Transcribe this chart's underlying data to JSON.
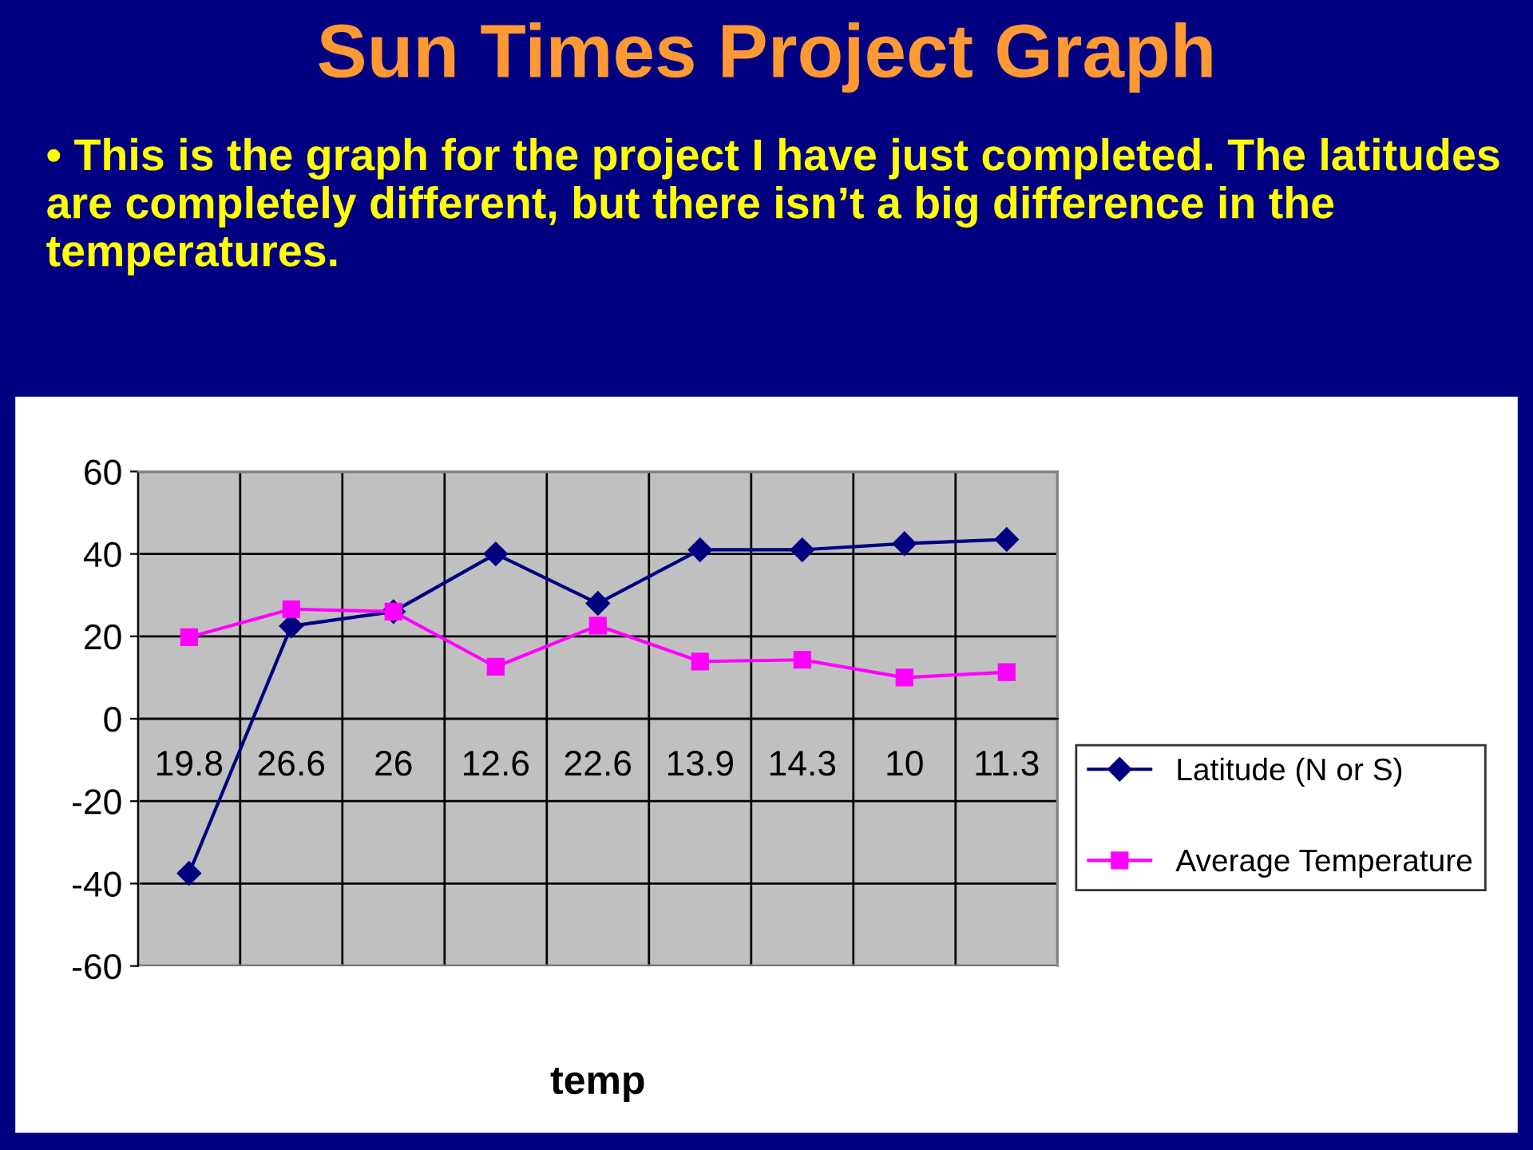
{
  "chart_data": {
    "type": "line",
    "title": "Sun Times Project Graph",
    "subtitle": "• This is the graph for the project I have just completed. The latitudes are completely different, but there isn’t a big difference in the temperatures.",
    "xlabel": "temp",
    "categories": [
      "19.8",
      "26.6",
      "26",
      "12.6",
      "22.6",
      "13.9",
      "14.3",
      "10",
      "11.3"
    ],
    "series": [
      {
        "name": "Latitude (N or S)",
        "color": "#000080",
        "marker": "diamond",
        "values": [
          -37.5,
          22.5,
          26,
          40,
          28,
          41,
          41,
          42.5,
          43.5
        ]
      },
      {
        "name": "Average Temperature",
        "color": "#ff00ff",
        "marker": "square",
        "values": [
          19.8,
          26.6,
          26,
          12.6,
          22.6,
          13.9,
          14.3,
          10,
          11.3
        ]
      }
    ],
    "ylim": [
      -60,
      60
    ],
    "yticks": [
      -60,
      -40,
      -20,
      0,
      20,
      40,
      60
    ],
    "grid": true,
    "legend": "right"
  }
}
